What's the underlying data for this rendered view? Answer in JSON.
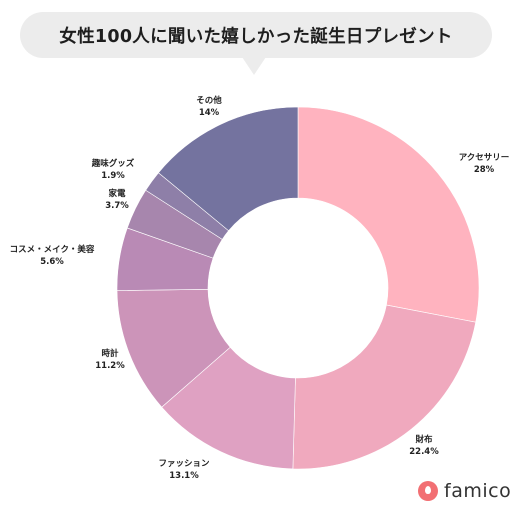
{
  "title": "女性100人に聞いた嬉しかった誕生日プレゼント",
  "logo": {
    "text": "famico"
  },
  "chart_data": {
    "type": "pie",
    "donut": true,
    "title": "女性100人に聞いた嬉しかった誕生日プレゼント",
    "categories": [
      "アクセサリー",
      "財布",
      "ファッション",
      "時計",
      "コスメ・メイク・美容",
      "家電",
      "趣味グッズ",
      "その他"
    ],
    "values": [
      28,
      22.4,
      13.1,
      11.2,
      5.6,
      3.7,
      1.9,
      14
    ],
    "value_labels": [
      "28%",
      "22.4%",
      "13.1%",
      "11.2%",
      "5.6%",
      "3.7%",
      "1.9%",
      "14%"
    ],
    "colors": [
      "#ffb3bf",
      "#f0a9be",
      "#dfa1c2",
      "#cc94b9",
      "#b98ab5",
      "#a786ad",
      "#8e7fa8",
      "#74739f"
    ],
    "start_angle": "top, clockwise",
    "legend": "none (labels placed around slices)"
  }
}
